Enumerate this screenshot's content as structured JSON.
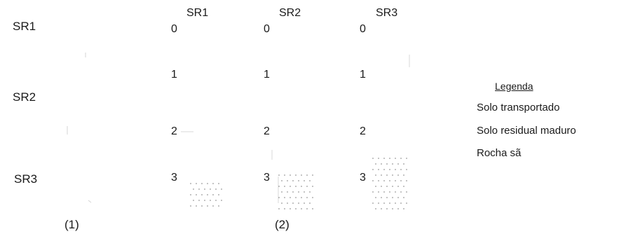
{
  "diagram": {
    "left_section": {
      "labels": [
        "SR1",
        "SR2",
        "SR3"
      ],
      "caption": "(1)"
    },
    "right_section": {
      "caption": "(2)",
      "profiles": [
        {
          "title": "SR1",
          "depth_ticks": [
            "0",
            "1",
            "2",
            "3"
          ]
        },
        {
          "title": "SR2",
          "depth_ticks": [
            "0",
            "1",
            "2",
            "3"
          ]
        },
        {
          "title": "SR3",
          "depth_ticks": [
            "0",
            "1",
            "2",
            "3"
          ]
        }
      ]
    },
    "legend": {
      "title": "Legenda",
      "items": [
        "Solo transportado",
        "Solo residual maduro",
        "Rocha sã"
      ]
    }
  }
}
